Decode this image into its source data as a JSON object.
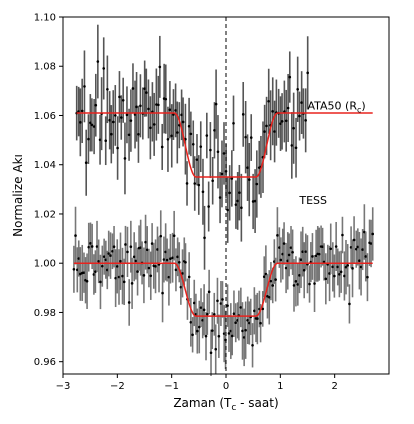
{
  "chart_data": {
    "type": "scatter",
    "xlabel": "Zaman (T_c - saat)",
    "xlabel_parts": [
      "Zaman (T",
      "c",
      " - saat)"
    ],
    "ylabel": "Normalize Akı",
    "xlim": [
      -3,
      3
    ],
    "ylim": [
      0.955,
      1.1
    ],
    "x_ticks": [
      -3,
      -2,
      -1,
      0,
      1,
      2
    ],
    "y_ticks": [
      0.96,
      0.98,
      1.0,
      1.02,
      1.04,
      1.06,
      1.08,
      1.1
    ],
    "x_tick_labels": [
      "−3",
      "−2",
      "−1",
      "0",
      "1",
      "2"
    ],
    "y_tick_labels": [
      "0.96",
      "0.98",
      "1.00",
      "1.02",
      "1.04",
      "1.06",
      "1.08",
      "1.10"
    ],
    "grid": false,
    "transit_center_line": {
      "x": 0,
      "style": "dashed",
      "color": "#000000"
    },
    "series": [
      {
        "name": "ATA50 (R_c)",
        "name_parts": [
          "ATA50 (R",
          "c",
          ")"
        ],
        "label_position": [
          1.5,
          1.0625
        ],
        "x_range": [
          -2.75,
          1.5
        ],
        "model_x_range": [
          -2.75,
          2.7
        ],
        "baseline": 1.061,
        "depth": 0.026,
        "t1": 0.95,
        "t2": 0.55,
        "scatter": 0.009,
        "error_bar": 0.012,
        "npoints": 120,
        "color_points": "#000000",
        "color_errors": "#555555",
        "color_model": "#e8231e"
      },
      {
        "name": "TESS",
        "label_position": [
          1.35,
          1.024
        ],
        "x_range": [
          -2.8,
          2.7
        ],
        "model_x_range": [
          -2.8,
          2.7
        ],
        "baseline": 1.0,
        "depth": 0.0215,
        "t1": 0.95,
        "t2": 0.55,
        "scatter": 0.0065,
        "error_bar": 0.0095,
        "npoints": 180,
        "color_points": "#000000",
        "color_errors": "#777777",
        "color_model": "#e8231e"
      }
    ]
  }
}
